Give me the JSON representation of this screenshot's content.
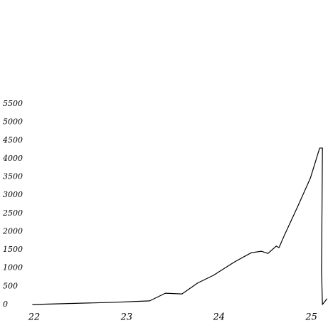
{
  "chart_data": {
    "type": "line",
    "x": [
      21.98,
      22.86,
      23.25,
      23.42,
      23.6,
      23.77,
      23.94,
      24.17,
      24.35,
      24.46,
      24.53,
      24.62,
      24.65,
      24.71,
      24.86,
      24.99,
      25.09,
      25.12,
      25.11,
      25.12,
      25.17
    ],
    "series": [
      {
        "name": null,
        "color": "#000000",
        "values": [
          0,
          60,
          100,
          310,
          290,
          590,
          800,
          1170,
          1420,
          1460,
          1400,
          1600,
          1560,
          1910,
          2730,
          3470,
          4290,
          4290,
          900,
          0,
          160
        ]
      }
    ],
    "xlim": [
      21.9,
      25.18
    ],
    "xticks": [
      22,
      23,
      24,
      25
    ],
    "ylim": [
      0,
      5500
    ],
    "yticks": [
      0,
      500,
      1000,
      1500,
      2000,
      2500,
      3000,
      3500,
      4000,
      4500,
      5000,
      5500
    ],
    "grid": false
  }
}
